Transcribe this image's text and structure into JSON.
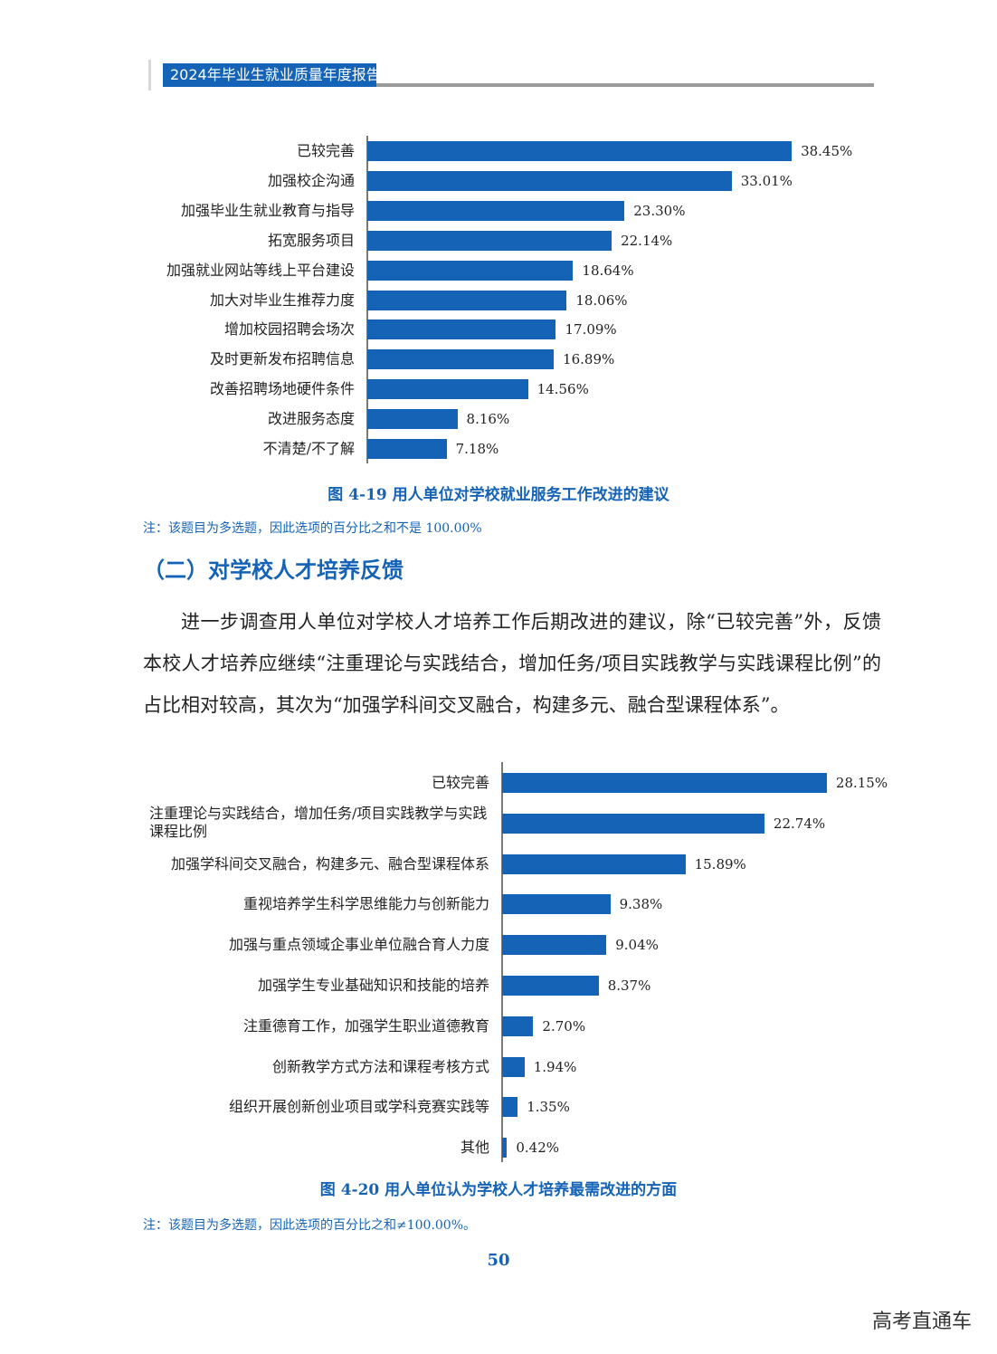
{
  "header": {
    "title": "2024年毕业生就业质量年度报告"
  },
  "chart_data": [
    {
      "type": "bar",
      "orientation": "horizontal",
      "categories": [
        "已较完善",
        "加强校企沟通",
        "加强毕业生就业教育与指导",
        "拓宽服务项目",
        "加强就业网站等线上平台建设",
        "加大对毕业生推荐力度",
        "增加校园招聘会场次",
        "及时更新发布招聘信息",
        "改善招聘场地硬件条件",
        "改进服务态度",
        "不清楚/不了解"
      ],
      "values": [
        38.45,
        33.01,
        23.3,
        22.14,
        18.64,
        18.06,
        17.09,
        16.89,
        14.56,
        8.16,
        7.18
      ],
      "labels": [
        "38.45%",
        "33.01%",
        "23.30%",
        "22.14%",
        "18.64%",
        "18.06%",
        "17.09%",
        "16.89%",
        "14.56%",
        "8.16%",
        "7.18%"
      ],
      "unit": "%",
      "color": "#1463b6",
      "title": "图 4-19  用人单位对学校就业服务工作改进的建议",
      "note": "注：该题目为多选题，因此选项的百分比之和不是 100.00%"
    },
    {
      "type": "bar",
      "orientation": "horizontal",
      "categories": [
        "已较完善",
        "注重理论与实践结合，增加任务/项目实践教学与实践课程比例",
        "加强学科间交叉融合，构建多元、融合型课程体系",
        "重视培养学生科学思维能力与创新能力",
        "加强与重点领域企事业单位融合育人力度",
        "加强学生专业基础知识和技能的培养",
        "注重德育工作，加强学生职业道德教育",
        "创新教学方式方法和课程考核方式",
        "组织开展创新创业项目或学科竞赛实践等",
        "其他"
      ],
      "values": [
        28.15,
        22.74,
        15.89,
        9.38,
        9.04,
        8.37,
        2.7,
        1.94,
        1.35,
        0.42
      ],
      "labels": [
        "28.15%",
        "22.74%",
        "15.89%",
        "9.38%",
        "9.04%",
        "8.37%",
        "2.70%",
        "1.94%",
        "1.35%",
        "0.42%"
      ],
      "unit": "%",
      "color": "#1463b6",
      "title": "图 4-20  用人单位认为学校人才培养最需改进的方面",
      "note": "注：该题目为多选题，因此选项的百分比之和≠100.00%。"
    }
  ],
  "section": {
    "title": "（二）对学校人才培养反馈",
    "paragraph": "进一步调查用人单位对学校人才培养工作后期改进的建议，除“已较完善”外，反馈本校人才培养应继续“注重理论与实践结合，增加任务/项目实践教学与实践课程比例”的占比相对较高，其次为“加强学科间交叉融合，构建多元、融合型课程体系”。"
  },
  "page_number": "50",
  "watermark": "高考直通车"
}
